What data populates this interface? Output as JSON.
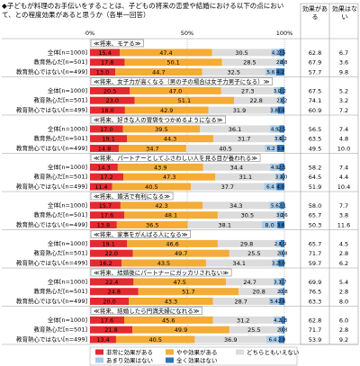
{
  "chart_data": {
    "type": "stacked-bar-horizontal",
    "title": "◆子どもが料理のお手伝いをすることは、子どもの将来の恋愛や結婚における以下の点において、との程度効果があると思うか（各単一回答）",
    "xlim": [
      0,
      100
    ],
    "xticks": [
      {
        "value": 0,
        "label": "0%"
      },
      {
        "value": 50,
        "label": "50%"
      },
      {
        "value": 100,
        "label": "100%"
      }
    ],
    "row_labels": [
      "全体[n=1000]",
      "教育熱心だ[n=501]",
      "教育熱心ではない[n=499]"
    ],
    "groups": [
      "≪将来、モテる≫",
      "≪将来、女子力が高くなる（男の子の場合は女子力男子になる）≫",
      "≪将来、好きな人の胃袋をつかめるようになる≫",
      "≪将来、パートナーとしてふさわしい人を見る目が養われる≫",
      "≪将来、婚活で有利になる≫",
      "≪将来、家事をがんばる人になる≫",
      "≪将来、結婚後にパートナーにガッカリされない≫",
      "≪将来、結婚したら円満夫婦になれる≫"
    ],
    "series": [
      {
        "name": "非常に効果がある",
        "color": "#e52a2f",
        "text_color": "#ffffff",
        "values": [
          15.4,
          17.8,
          13.0,
          20.5,
          23.0,
          18.0,
          17.0,
          19.1,
          14.8,
          14.3,
          17.2,
          11.4,
          15.7,
          17.6,
          13.8,
          19.1,
          22.0,
          16.2,
          22.4,
          24.8,
          20.0,
          17.6,
          21.8,
          13.4
        ],
        "value_labels": [
          "15.4",
          "17.8",
          "13.0",
          "20.5",
          "23.0",
          "18.0",
          "17.0",
          "19.1",
          "14.8",
          "14.3",
          "17.2",
          "11.4",
          "15.7",
          "17.6",
          "13.8",
          "19.1",
          "22.0",
          "16.2",
          "22.4",
          "24.8",
          "20.0",
          "17.6",
          "21.8",
          "13.4"
        ]
      },
      {
        "name": "やや効果がある",
        "color": "#f4ac36",
        "text_color": "#000000",
        "values": [
          47.4,
          50.1,
          44.7,
          47.0,
          51.1,
          42.9,
          39.5,
          44.3,
          34.7,
          43.9,
          47.3,
          40.5,
          42.3,
          48.1,
          36.5,
          46.6,
          49.7,
          43.5,
          47.5,
          51.7,
          43.3,
          45.6,
          49.9,
          40.5
        ],
        "value_labels": [
          "47.4",
          "50.1",
          "44.7",
          "47.0",
          "51.1",
          "42.9",
          "39.5",
          "44.3",
          "34.7",
          "43.9",
          "47.3",
          "40.5",
          "42.3",
          "48.1",
          "36.5",
          "46.6",
          "49.7",
          "43.5",
          "47.5",
          "51.7",
          "43.3",
          "45.6",
          "49.9",
          "40.5"
        ]
      },
      {
        "name": "どちらともいえない",
        "color": "#dcdcdc",
        "text_color": "#000000",
        "values": [
          30.5,
          28.5,
          32.5,
          27.3,
          22.8,
          31.9,
          36.1,
          31.7,
          40.5,
          34.4,
          31.1,
          37.7,
          34.3,
          30.5,
          38.1,
          29.8,
          25.5,
          34.1,
          24.7,
          20.8,
          28.7,
          31.2,
          25.5,
          36.9
        ],
        "value_labels": [
          "30.5",
          "28.5",
          "32.5",
          "27.3",
          "22.8",
          "31.9",
          "36.1",
          "31.7",
          "40.5",
          "34.4",
          "31.1",
          "37.7",
          "34.3",
          "30.5",
          "38.1",
          "29.8",
          "25.5",
          "34.1",
          "24.7",
          "20.8",
          "28.7",
          "31.2",
          "25.5",
          "36.9"
        ]
      },
      {
        "name": "あまり効果はない",
        "color": "#a9cbe8",
        "text_color": "#000000",
        "values": [
          4.2,
          2.8,
          5.6,
          3.0,
          2.0,
          3.8,
          4.9,
          3.6,
          6.2,
          4.9,
          3.4,
          6.4,
          5.6,
          3.2,
          8.0,
          2.6,
          2.0,
          3.2,
          3.7,
          2.0,
          5.4,
          4.2,
          2.0,
          6.4
        ],
        "value_labels": [
          "4.2",
          "2.8",
          "5.6",
          "3.0",
          "2.0",
          "3.8",
          "4.9",
          "3.6",
          "6.2",
          "4.9",
          "3.4",
          "6.4",
          "5.6",
          "3.2",
          "8.0",
          "2.6",
          "2.0",
          "3.2",
          "3.7",
          "2.0",
          "5.4",
          "4.2",
          "2.0",
          "6.4"
        ]
      },
      {
        "name": "全く効果はない",
        "color": "#2f73b5",
        "text_color": "#ffffff",
        "values": [
          2.5,
          0.8,
          4.2,
          2.2,
          1.2,
          3.4,
          2.5,
          1.2,
          3.8,
          2.5,
          1.0,
          4.0,
          2.1,
          0.6,
          3.6,
          1.9,
          0.8,
          3.0,
          1.7,
          0.8,
          2.6,
          1.8,
          0.8,
          2.8
        ],
        "value_labels": [
          "2.5",
          "0.8",
          "4.2",
          "2.2",
          "1.2",
          "3.4",
          "2.5",
          "1.2",
          "3.8",
          "2.5",
          "1.0",
          "4.0",
          "2.1",
          "0.6",
          "3.6",
          "1.9",
          "0.8",
          "3.0",
          "1.7",
          "0.8",
          "2.6",
          "1.8",
          "0.8",
          "2.8"
        ]
      }
    ],
    "summary": [
      {
        "header": "効果がある",
        "values": [
          62.8,
          67.9,
          57.7,
          67.5,
          74.1,
          60.9,
          56.5,
          63.5,
          49.5,
          58.2,
          64.5,
          51.9,
          58.0,
          65.7,
          50.3,
          65.7,
          71.7,
          59.7,
          69.9,
          76.5,
          63.3,
          62.8,
          71.7,
          53.9
        ],
        "value_labels": [
          "62.8",
          "67.9",
          "57.7",
          "67.5",
          "74.1",
          "60.9",
          "56.5",
          "63.5",
          "49.5",
          "58.2",
          "64.5",
          "51.9",
          "58.0",
          "65.7",
          "50.3",
          "65.7",
          "71.7",
          "59.7",
          "69.9",
          "76.5",
          "63.3",
          "62.8",
          "71.7",
          "53.9"
        ]
      },
      {
        "header": "効果はない",
        "values": [
          6.7,
          3.6,
          9.8,
          5.2,
          3.2,
          7.2,
          7.4,
          4.8,
          10.0,
          7.4,
          4.4,
          10.4,
          7.7,
          3.8,
          11.6,
          4.5,
          2.8,
          6.2,
          5.4,
          2.8,
          8.0,
          6.0,
          2.8,
          9.2
        ],
        "value_labels": [
          "6.7",
          "3.6",
          "9.8",
          "5.2",
          "3.2",
          "7.2",
          "7.4",
          "4.8",
          "10.0",
          "7.4",
          "4.4",
          "10.4",
          "7.7",
          "3.8",
          "11.6",
          "4.5",
          "2.8",
          "6.2",
          "5.4",
          "2.8",
          "8.0",
          "6.0",
          "2.8",
          "9.2"
        ]
      }
    ]
  }
}
